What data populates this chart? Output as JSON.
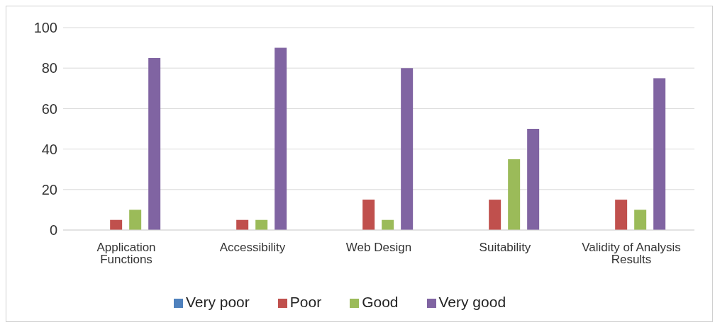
{
  "chart_data": {
    "type": "bar",
    "categories": [
      "Application Functions",
      "Accessibility",
      "Web Design",
      "Suitability",
      "Validity of Analysis Results"
    ],
    "series": [
      {
        "name": "Very poor",
        "color": "#4f81bd",
        "values": [
          0,
          0,
          0,
          0,
          0
        ]
      },
      {
        "name": "Poor",
        "color": "#c0504d",
        "values": [
          5,
          5,
          15,
          15,
          15
        ]
      },
      {
        "name": "Good",
        "color": "#9bbb59",
        "values": [
          10,
          5,
          5,
          35,
          10
        ]
      },
      {
        "name": "Very good",
        "color": "#8064a2",
        "values": [
          85,
          90,
          80,
          50,
          75
        ]
      }
    ],
    "ylim": [
      0,
      100
    ],
    "yticks": [
      0,
      20,
      40,
      60,
      80,
      100
    ],
    "grid": "y",
    "legend": "bottom"
  }
}
